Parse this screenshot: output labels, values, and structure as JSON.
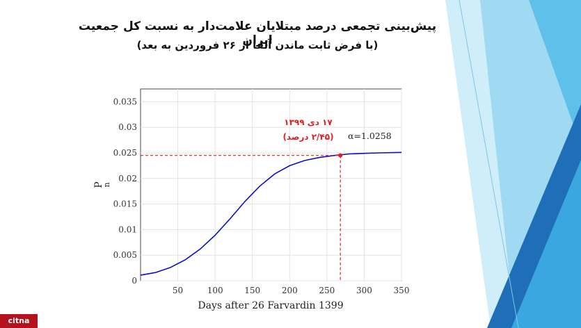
{
  "slide": {
    "title_line1": "پیش‌بینی تجمعی درصد مبتلایان علامت‌دار به نسبت کل جمعیت ایران",
    "title_line2": "(با فرض ثابت ماندن آلفا از ۲۶ فروردین به بعد)",
    "brand": "citna",
    "colors": {
      "curve": "#0a0fc8",
      "marker": "#e02020",
      "annotation": "#e02020",
      "decor_light": "#9fd9f2",
      "decor_mid": "#3aa7e0",
      "decor_dark": "#1f6fb8"
    }
  },
  "chart_data": {
    "type": "line",
    "xlabel": "Days after 26 Farvardin 1399",
    "ylabel": "P",
    "ylabel_sub": "n",
    "xlim": [
      0,
      350
    ],
    "ylim": [
      0,
      0.0375
    ],
    "x_ticks": [
      50,
      100,
      150,
      200,
      250,
      300,
      350
    ],
    "y_ticks": [
      0,
      0.005,
      0.01,
      0.015,
      0.02,
      0.025,
      0.03,
      0.035
    ],
    "y_tick_labels": [
      "0",
      "0.005",
      "0.01",
      "0.015",
      "0.02",
      "0.025",
      "0.03",
      "0.035"
    ],
    "grid": true,
    "series": [
      {
        "x": [
          0,
          20,
          40,
          60,
          80,
          100,
          120,
          140,
          160,
          180,
          200,
          220,
          240,
          260,
          280,
          300,
          320,
          350
        ],
        "values": [
          0.0011,
          0.0016,
          0.0026,
          0.0041,
          0.0062,
          0.0089,
          0.0121,
          0.0155,
          0.0185,
          0.0209,
          0.0225,
          0.0235,
          0.0241,
          0.0245,
          0.0248,
          0.0249,
          0.025,
          0.0251
        ]
      }
    ],
    "marker": {
      "x": 268,
      "y": 0.0245
    },
    "annotations": {
      "alpha": "α=1.0258",
      "date_line1": "۱۷ دی ۱۳۹۹",
      "date_line2": "(۲/۴۵ درصد)"
    }
  }
}
